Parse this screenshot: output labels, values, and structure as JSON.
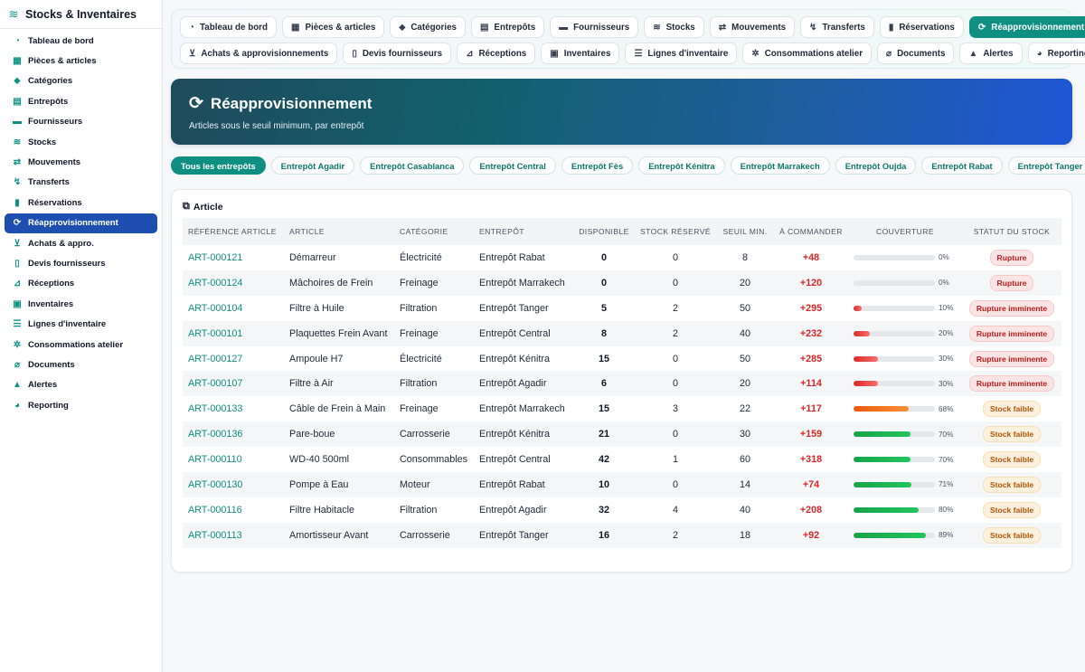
{
  "app": {
    "title": "Stocks & Inventaires",
    "icon": "layers-icon"
  },
  "sidebar": {
    "items": [
      {
        "label": "Tableau de bord",
        "icon": "gauge-icon",
        "glyph": "◔"
      },
      {
        "label": "Pièces & articles",
        "icon": "boxes-icon",
        "glyph": "▦"
      },
      {
        "label": "Catégories",
        "icon": "tags-icon",
        "glyph": "⬥"
      },
      {
        "label": "Entrepôts",
        "icon": "warehouse-icon",
        "glyph": "▤"
      },
      {
        "label": "Fournisseurs",
        "icon": "truck-icon",
        "glyph": "▬"
      },
      {
        "label": "Stocks",
        "icon": "layers-icon",
        "glyph": "≋"
      },
      {
        "label": "Mouvements",
        "icon": "arrows-icon",
        "glyph": "⇄"
      },
      {
        "label": "Transferts",
        "icon": "dolly-icon",
        "glyph": "↯"
      },
      {
        "label": "Réservations",
        "icon": "bookmark-icon",
        "glyph": "▮"
      },
      {
        "label": "Réapprovisionnement",
        "icon": "sync-icon",
        "glyph": "⟳",
        "active": true
      },
      {
        "label": "Achats & appro.",
        "icon": "cart-icon",
        "glyph": "⊻"
      },
      {
        "label": "Devis fournisseurs",
        "icon": "invoice-icon",
        "glyph": "▯"
      },
      {
        "label": "Réceptions",
        "icon": "truck-loading-icon",
        "glyph": "⊿"
      },
      {
        "label": "Inventaires",
        "icon": "clipboard-icon",
        "glyph": "▣"
      },
      {
        "label": "Lignes d'inventaire",
        "icon": "list-icon",
        "glyph": "☰"
      },
      {
        "label": "Consommations atelier",
        "icon": "cogs-icon",
        "glyph": "✲"
      },
      {
        "label": "Documents",
        "icon": "paperclip-icon",
        "glyph": "⌀"
      },
      {
        "label": "Alertes",
        "icon": "bell-icon",
        "glyph": "▲"
      },
      {
        "label": "Reporting",
        "icon": "pie-chart-icon",
        "glyph": "◕"
      }
    ]
  },
  "topnav": {
    "row1": [
      {
        "label": "Tableau de bord",
        "icon": "gauge-icon",
        "glyph": "◔"
      },
      {
        "label": "Pièces & articles",
        "icon": "boxes-icon",
        "glyph": "▦"
      },
      {
        "label": "Catégories",
        "icon": "tags-icon",
        "glyph": "⬥"
      },
      {
        "label": "Entrepôts",
        "icon": "warehouse-icon",
        "glyph": "▤"
      },
      {
        "label": "Fournisseurs",
        "icon": "truck-icon",
        "glyph": "▬"
      },
      {
        "label": "Stocks",
        "icon": "layers-icon",
        "glyph": "≋"
      },
      {
        "label": "Mouvements",
        "icon": "arrows-icon",
        "glyph": "⇄"
      },
      {
        "label": "Transferts",
        "icon": "dolly-icon",
        "glyph": "↯"
      },
      {
        "label": "Réservations",
        "icon": "bookmark-icon",
        "glyph": "▮"
      },
      {
        "label": "Réapprovisionnement",
        "icon": "sync-icon",
        "glyph": "⟳",
        "active": true
      }
    ],
    "row2": [
      {
        "label": "Achats & approvisionnements",
        "icon": "cart-icon",
        "glyph": "⊻"
      },
      {
        "label": "Devis fournisseurs",
        "icon": "invoice-icon",
        "glyph": "▯"
      },
      {
        "label": "Réceptions",
        "icon": "truck-loading-icon",
        "glyph": "⊿"
      },
      {
        "label": "Inventaires",
        "icon": "clipboard-icon",
        "glyph": "▣"
      },
      {
        "label": "Lignes d'inventaire",
        "icon": "list-icon",
        "glyph": "☰"
      },
      {
        "label": "Consommations atelier",
        "icon": "cogs-icon",
        "glyph": "✲"
      },
      {
        "label": "Documents",
        "icon": "paperclip-icon",
        "glyph": "⌀"
      },
      {
        "label": "Alertes",
        "icon": "bell-icon",
        "glyph": "▲"
      },
      {
        "label": "Reporting",
        "icon": "pie-chart-icon",
        "glyph": "◕"
      }
    ]
  },
  "banner": {
    "title": "Réapprovisionnement",
    "subtitle": "Articles sous le seuil minimum, par entrepôt",
    "icon": "sync-icon"
  },
  "filters": [
    {
      "label": "Tous les entrepôts",
      "active": true
    },
    {
      "label": "Entrepôt Agadir"
    },
    {
      "label": "Entrepôt Casablanca"
    },
    {
      "label": "Entrepôt Central"
    },
    {
      "label": "Entrepôt Fès"
    },
    {
      "label": "Entrepôt Kénitra"
    },
    {
      "label": "Entrepôt Marrakech"
    },
    {
      "label": "Entrepôt Oujda"
    },
    {
      "label": "Entrepôt Rabat"
    },
    {
      "label": "Entrepôt Tanger"
    }
  ],
  "card": {
    "title": "Article",
    "icon": "cubes-icon"
  },
  "table": {
    "columns": [
      "RÉFÉRENCE ARTICLE",
      "ARTICLE",
      "CATÉGORIE",
      "ENTREPÔT",
      "DISPONIBLE",
      "STOCK RÉSERVÉ",
      "SEUIL MIN.",
      "À COMMANDER",
      "COUVERTURE",
      "STATUT DU STOCK"
    ],
    "rows": [
      {
        "ref": "ART-000121",
        "article": "Démarreur",
        "cat": "Électricité",
        "ent": "Entrepôt Rabat",
        "dispo": "0",
        "res": "0",
        "seuil": "8",
        "cmd": "+48",
        "cov": 0,
        "cov_label": "0%",
        "cov_color": "#e5e7eb",
        "statut": "Rupture",
        "kind": "rupture"
      },
      {
        "ref": "ART-000124",
        "article": "Mâchoires de Frein",
        "cat": "Freinage",
        "ent": "Entrepôt Marrakech",
        "dispo": "0",
        "res": "0",
        "seuil": "20",
        "cmd": "+120",
        "cov": 0,
        "cov_label": "0%",
        "cov_color": "#e5e7eb",
        "statut": "Rupture",
        "kind": "rupture"
      },
      {
        "ref": "ART-000104",
        "article": "Filtre à Huile",
        "cat": "Filtration",
        "ent": "Entrepôt Tanger",
        "dispo": "5",
        "res": "2",
        "seuil": "50",
        "cmd": "+295",
        "cov": 10,
        "cov_label": "10%",
        "cov_color": "#dc2626",
        "statut": "Rupture imminente",
        "kind": "imm"
      },
      {
        "ref": "ART-000101",
        "article": "Plaquettes Frein Avant",
        "cat": "Freinage",
        "ent": "Entrepôt Central",
        "dispo": "8",
        "res": "2",
        "seuil": "40",
        "cmd": "+232",
        "cov": 20,
        "cov_label": "20%",
        "cov_color": "#dc2626",
        "statut": "Rupture imminente",
        "kind": "imm"
      },
      {
        "ref": "ART-000127",
        "article": "Ampoule H7",
        "cat": "Électricité",
        "ent": "Entrepôt Kénitra",
        "dispo": "15",
        "res": "0",
        "seuil": "50",
        "cmd": "+285",
        "cov": 30,
        "cov_label": "30%",
        "cov_color": "#dc2626",
        "statut": "Rupture imminente",
        "kind": "imm"
      },
      {
        "ref": "ART-000107",
        "article": "Filtre à Air",
        "cat": "Filtration",
        "ent": "Entrepôt Agadir",
        "dispo": "6",
        "res": "0",
        "seuil": "20",
        "cmd": "+114",
        "cov": 30,
        "cov_label": "30%",
        "cov_color": "#dc2626",
        "statut": "Rupture imminente",
        "kind": "imm"
      },
      {
        "ref": "ART-000133",
        "article": "Câble de Frein à Main",
        "cat": "Freinage",
        "ent": "Entrepôt Marrakech",
        "dispo": "15",
        "res": "3",
        "seuil": "22",
        "cmd": "+117",
        "cov": 68,
        "cov_label": "68%",
        "cov_color": "#ea580c",
        "statut": "Stock faible",
        "kind": "faible"
      },
      {
        "ref": "ART-000136",
        "article": "Pare-boue",
        "cat": "Carrosserie",
        "ent": "Entrepôt Kénitra",
        "dispo": "21",
        "res": "0",
        "seuil": "30",
        "cmd": "+159",
        "cov": 70,
        "cov_label": "70%",
        "cov_color": "#16a34a",
        "statut": "Stock faible",
        "kind": "faible"
      },
      {
        "ref": "ART-000110",
        "article": "WD-40 500ml",
        "cat": "Consommables",
        "ent": "Entrepôt Central",
        "dispo": "42",
        "res": "1",
        "seuil": "60",
        "cmd": "+318",
        "cov": 70,
        "cov_label": "70%",
        "cov_color": "#16a34a",
        "statut": "Stock faible",
        "kind": "faible"
      },
      {
        "ref": "ART-000130",
        "article": "Pompe à Eau",
        "cat": "Moteur",
        "ent": "Entrepôt Rabat",
        "dispo": "10",
        "res": "0",
        "seuil": "14",
        "cmd": "+74",
        "cov": 71,
        "cov_label": "71%",
        "cov_color": "#16a34a",
        "statut": "Stock faible",
        "kind": "faible"
      },
      {
        "ref": "ART-000116",
        "article": "Filtre Habitacle",
        "cat": "Filtration",
        "ent": "Entrepôt Agadir",
        "dispo": "32",
        "res": "4",
        "seuil": "40",
        "cmd": "+208",
        "cov": 80,
        "cov_label": "80%",
        "cov_color": "#16a34a",
        "statut": "Stock faible",
        "kind": "faible"
      },
      {
        "ref": "ART-000113",
        "article": "Amortisseur Avant",
        "cat": "Carrosserie",
        "ent": "Entrepôt Tanger",
        "dispo": "16",
        "res": "2",
        "seuil": "18",
        "cmd": "+92",
        "cov": 89,
        "cov_label": "89%",
        "cov_color": "#16a34a",
        "statut": "Stock faible",
        "kind": "faible"
      }
    ]
  }
}
